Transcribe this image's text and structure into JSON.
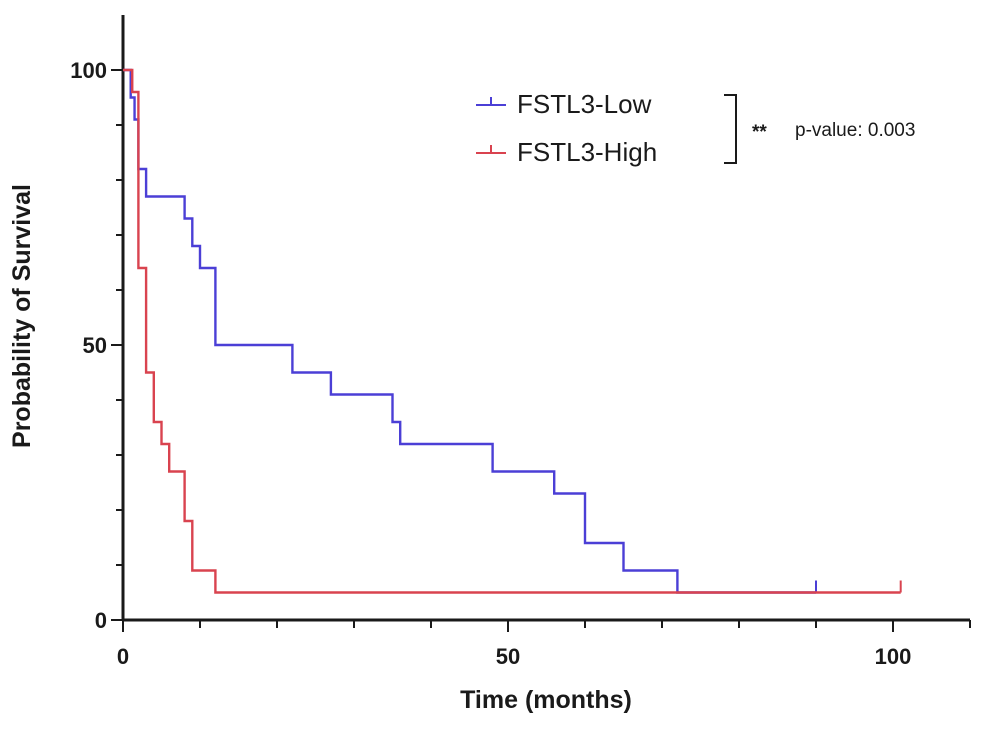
{
  "chart_data": {
    "type": "line",
    "subtype": "kaplan-meier step",
    "xlabel": "Time (months)",
    "ylabel": "Probability of Survival",
    "xlim": [
      0,
      110
    ],
    "ylim": [
      0,
      100
    ],
    "x_ticks": [
      0,
      50,
      100
    ],
    "y_ticks": [
      0,
      50,
      100
    ],
    "grid": false,
    "legend_position": "top-right",
    "series": [
      {
        "name": "FSTL3-Low",
        "color": "#4b3fd6",
        "steps": [
          [
            0,
            100
          ],
          [
            1,
            95
          ],
          [
            1.5,
            91
          ],
          [
            2,
            82
          ],
          [
            3,
            77
          ],
          [
            8,
            73
          ],
          [
            9,
            68
          ],
          [
            10,
            64
          ],
          [
            12,
            50
          ],
          [
            22,
            45
          ],
          [
            27,
            41
          ],
          [
            35,
            36
          ],
          [
            36,
            32
          ],
          [
            48,
            27
          ],
          [
            56,
            23
          ],
          [
            60,
            14
          ],
          [
            65,
            9
          ],
          [
            72,
            5
          ],
          [
            90,
            5
          ]
        ],
        "censored": [
          90
        ]
      },
      {
        "name": "FSTL3-High",
        "color": "#d9434f",
        "steps": [
          [
            0,
            100
          ],
          [
            1.2,
            96
          ],
          [
            2,
            64
          ],
          [
            3,
            45
          ],
          [
            4,
            36
          ],
          [
            5,
            32
          ],
          [
            6,
            27
          ],
          [
            8,
            18
          ],
          [
            9,
            9
          ],
          [
            12,
            5
          ],
          [
            101,
            5
          ]
        ],
        "censored": [
          101
        ]
      }
    ],
    "annotation": {
      "stars": "**",
      "text": "p-value: 0.003"
    }
  }
}
